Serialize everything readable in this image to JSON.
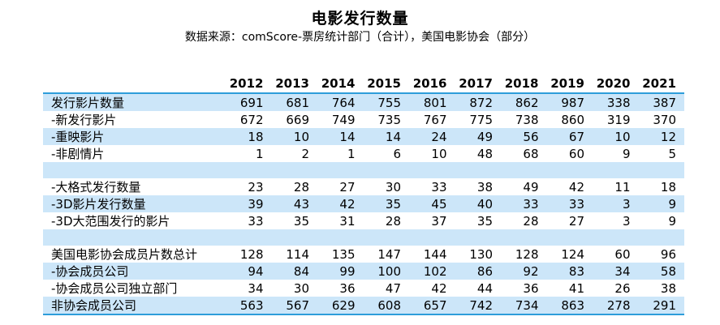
{
  "title": "电影发行数量",
  "subtitle": "数据来源：comScore-票房统计部门（合计），美国电影协会（部分）",
  "colors": {
    "accent_line": "#2D9DDA",
    "row_band": "#CCE6F9",
    "text": "#000000"
  },
  "chart_data": {
    "type": "table",
    "title": "电影发行数量",
    "source_note": "数据来源：comScore-票房统计部门（合计），美国电影协会（部分）",
    "columns": [
      "2012",
      "2013",
      "2014",
      "2015",
      "2016",
      "2017",
      "2018",
      "2019",
      "2020",
      "2021"
    ],
    "rows": [
      {
        "label": "发行影片数量",
        "values": [
          691,
          681,
          764,
          755,
          801,
          872,
          862,
          987,
          338,
          387
        ]
      },
      {
        "label": "-新发行影片",
        "values": [
          672,
          669,
          749,
          735,
          767,
          775,
          738,
          860,
          319,
          370
        ]
      },
      {
        "label": "-重映影片",
        "values": [
          18,
          10,
          14,
          14,
          24,
          49,
          56,
          67,
          10,
          12
        ]
      },
      {
        "label": "-非剧情片",
        "values": [
          1,
          2,
          1,
          6,
          10,
          48,
          68,
          60,
          9,
          5
        ]
      },
      {
        "label": "",
        "values": [
          "",
          "",
          "",
          "",
          "",
          "",
          "",
          "",
          "",
          ""
        ]
      },
      {
        "label": "-大格式发行数量",
        "values": [
          23,
          28,
          27,
          30,
          33,
          38,
          49,
          42,
          11,
          18
        ]
      },
      {
        "label": "-3D影片发行数量",
        "values": [
          39,
          43,
          42,
          35,
          45,
          40,
          33,
          33,
          3,
          9
        ]
      },
      {
        "label": "-3D大范围发行的影片",
        "values": [
          33,
          35,
          31,
          28,
          37,
          35,
          28,
          27,
          3,
          9
        ]
      },
      {
        "label": "",
        "values": [
          "",
          "",
          "",
          "",
          "",
          "",
          "",
          "",
          "",
          ""
        ]
      },
      {
        "label": "美国电影协会成员片数总计",
        "values": [
          128,
          114,
          135,
          147,
          144,
          130,
          128,
          124,
          60,
          96
        ]
      },
      {
        "label": "-协会成员公司",
        "values": [
          94,
          84,
          99,
          100,
          102,
          86,
          92,
          83,
          34,
          58
        ]
      },
      {
        "label": "-协会成员公司独立部门",
        "values": [
          34,
          30,
          36,
          47,
          42,
          44,
          36,
          41,
          26,
          38
        ]
      },
      {
        "label": "非协会成员公司",
        "values": [
          563,
          567,
          629,
          608,
          657,
          742,
          734,
          863,
          278,
          291
        ]
      }
    ]
  }
}
